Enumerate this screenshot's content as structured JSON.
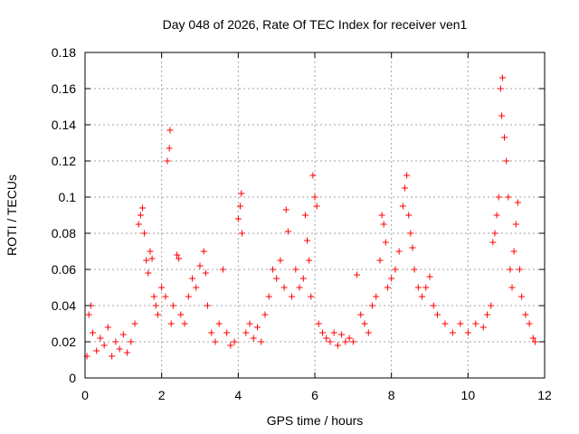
{
  "chart_data": {
    "type": "scatter",
    "title": "Day 048 of 2026, Rate Of TEC Index for receiver ven1",
    "xlabel": "GPS time / hours",
    "ylabel": "ROTI / TECUs",
    "xlim": [
      0,
      12
    ],
    "ylim": [
      0,
      0.18
    ],
    "xticks": [
      "0",
      "2",
      "4",
      "6",
      "8",
      "10",
      "12"
    ],
    "yticks": [
      "0",
      "0.02",
      "0.04",
      "0.06",
      "0.08",
      "0.1",
      "0.12",
      "0.14",
      "0.16",
      "0.18"
    ],
    "grid": true,
    "marker": "+",
    "color": "#ff0000",
    "series": [
      {
        "name": "ROTI",
        "points": [
          [
            0.05,
            0.012
          ],
          [
            0.1,
            0.035
          ],
          [
            0.15,
            0.04
          ],
          [
            0.2,
            0.025
          ],
          [
            0.3,
            0.015
          ],
          [
            0.4,
            0.022
          ],
          [
            0.5,
            0.018
          ],
          [
            0.6,
            0.028
          ],
          [
            0.7,
            0.012
          ],
          [
            0.8,
            0.02
          ],
          [
            0.9,
            0.016
          ],
          [
            1.0,
            0.024
          ],
          [
            1.1,
            0.014
          ],
          [
            1.2,
            0.02
          ],
          [
            1.3,
            0.03
          ],
          [
            1.4,
            0.085
          ],
          [
            1.45,
            0.09
          ],
          [
            1.5,
            0.094
          ],
          [
            1.55,
            0.08
          ],
          [
            1.6,
            0.065
          ],
          [
            1.65,
            0.058
          ],
          [
            1.7,
            0.07
          ],
          [
            1.75,
            0.066
          ],
          [
            1.8,
            0.045
          ],
          [
            1.85,
            0.04
          ],
          [
            1.9,
            0.035
          ],
          [
            2.0,
            0.05
          ],
          [
            2.1,
            0.045
          ],
          [
            2.15,
            0.12
          ],
          [
            2.2,
            0.127
          ],
          [
            2.22,
            0.137
          ],
          [
            2.25,
            0.03
          ],
          [
            2.3,
            0.04
          ],
          [
            2.4,
            0.068
          ],
          [
            2.45,
            0.066
          ],
          [
            2.5,
            0.035
          ],
          [
            2.6,
            0.03
          ],
          [
            2.7,
            0.045
          ],
          [
            2.8,
            0.055
          ],
          [
            2.9,
            0.05
          ],
          [
            3.0,
            0.062
          ],
          [
            3.1,
            0.07
          ],
          [
            3.15,
            0.058
          ],
          [
            3.2,
            0.04
          ],
          [
            3.3,
            0.025
          ],
          [
            3.4,
            0.02
          ],
          [
            3.5,
            0.03
          ],
          [
            3.6,
            0.06
          ],
          [
            3.7,
            0.025
          ],
          [
            3.8,
            0.018
          ],
          [
            3.9,
            0.02
          ],
          [
            4.0,
            0.088
          ],
          [
            4.05,
            0.095
          ],
          [
            4.08,
            0.102
          ],
          [
            4.1,
            0.08
          ],
          [
            4.2,
            0.025
          ],
          [
            4.3,
            0.03
          ],
          [
            4.4,
            0.022
          ],
          [
            4.5,
            0.028
          ],
          [
            4.6,
            0.02
          ],
          [
            4.7,
            0.035
          ],
          [
            4.8,
            0.045
          ],
          [
            4.9,
            0.06
          ],
          [
            5.0,
            0.055
          ],
          [
            5.1,
            0.065
          ],
          [
            5.2,
            0.05
          ],
          [
            5.25,
            0.093
          ],
          [
            5.3,
            0.081
          ],
          [
            5.4,
            0.045
          ],
          [
            5.5,
            0.06
          ],
          [
            5.6,
            0.05
          ],
          [
            5.7,
            0.055
          ],
          [
            5.75,
            0.09
          ],
          [
            5.8,
            0.076
          ],
          [
            5.85,
            0.065
          ],
          [
            5.9,
            0.045
          ],
          [
            5.95,
            0.112
          ],
          [
            6.0,
            0.1
          ],
          [
            6.05,
            0.095
          ],
          [
            6.1,
            0.03
          ],
          [
            6.2,
            0.025
          ],
          [
            6.3,
            0.022
          ],
          [
            6.4,
            0.02
          ],
          [
            6.5,
            0.025
          ],
          [
            6.6,
            0.018
          ],
          [
            6.7,
            0.024
          ],
          [
            6.8,
            0.02
          ],
          [
            6.9,
            0.022
          ],
          [
            7.0,
            0.02
          ],
          [
            7.1,
            0.057
          ],
          [
            7.2,
            0.035
          ],
          [
            7.3,
            0.03
          ],
          [
            7.4,
            0.025
          ],
          [
            7.5,
            0.04
          ],
          [
            7.6,
            0.045
          ],
          [
            7.7,
            0.065
          ],
          [
            7.75,
            0.09
          ],
          [
            7.8,
            0.085
          ],
          [
            7.85,
            0.075
          ],
          [
            7.9,
            0.05
          ],
          [
            8.0,
            0.055
          ],
          [
            8.1,
            0.06
          ],
          [
            8.2,
            0.07
          ],
          [
            8.3,
            0.095
          ],
          [
            8.35,
            0.105
          ],
          [
            8.4,
            0.112
          ],
          [
            8.45,
            0.09
          ],
          [
            8.5,
            0.08
          ],
          [
            8.55,
            0.072
          ],
          [
            8.6,
            0.06
          ],
          [
            8.7,
            0.05
          ],
          [
            8.8,
            0.045
          ],
          [
            8.9,
            0.05
          ],
          [
            9.0,
            0.056
          ],
          [
            9.1,
            0.04
          ],
          [
            9.2,
            0.035
          ],
          [
            9.4,
            0.03
          ],
          [
            9.6,
            0.025
          ],
          [
            9.8,
            0.03
          ],
          [
            10.0,
            0.025
          ],
          [
            10.2,
            0.03
          ],
          [
            10.4,
            0.028
          ],
          [
            10.5,
            0.035
          ],
          [
            10.6,
            0.04
          ],
          [
            10.65,
            0.075
          ],
          [
            10.7,
            0.08
          ],
          [
            10.75,
            0.09
          ],
          [
            10.8,
            0.1
          ],
          [
            10.85,
            0.16
          ],
          [
            10.88,
            0.145
          ],
          [
            10.9,
            0.166
          ],
          [
            10.95,
            0.133
          ],
          [
            11.0,
            0.12
          ],
          [
            11.05,
            0.1
          ],
          [
            11.1,
            0.06
          ],
          [
            11.15,
            0.05
          ],
          [
            11.2,
            0.07
          ],
          [
            11.25,
            0.085
          ],
          [
            11.3,
            0.097
          ],
          [
            11.35,
            0.06
          ],
          [
            11.4,
            0.045
          ],
          [
            11.5,
            0.035
          ],
          [
            11.6,
            0.03
          ],
          [
            11.7,
            0.022
          ],
          [
            11.75,
            0.02
          ]
        ]
      }
    ]
  }
}
